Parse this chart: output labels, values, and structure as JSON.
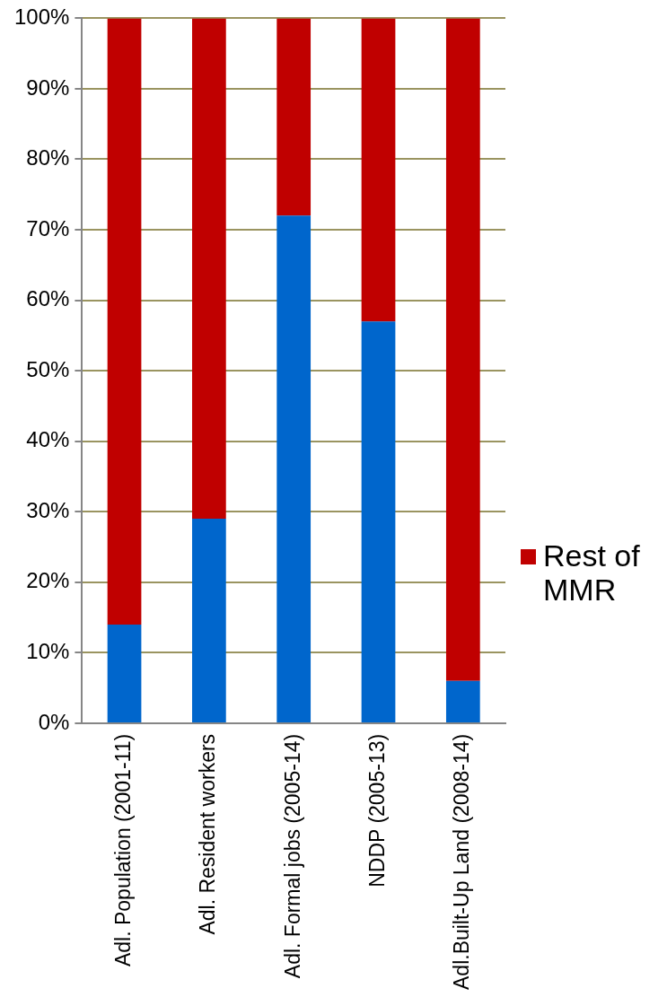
{
  "chart_data": {
    "type": "bar",
    "stacked": true,
    "categories": [
      "Adl. Population (2001-11)",
      "Adl. Resident workers",
      "Adl. Formal jobs (2005-14)",
      "NDDP (2005-13)",
      "Adl.Built-Up Land (2008-14)"
    ],
    "series": [
      {
        "color": "#0066cc",
        "values": [
          14,
          29,
          72,
          57,
          6
        ]
      },
      {
        "name": "Rest of MMR",
        "color": "#c00000",
        "values": [
          86,
          71,
          28,
          43,
          94
        ]
      }
    ],
    "ylim": [
      0,
      100
    ],
    "yticks": [
      {
        "value": 0,
        "label": "0%"
      },
      {
        "value": 10,
        "label": "10%"
      },
      {
        "value": 20,
        "label": "20%"
      },
      {
        "value": 30,
        "label": "30%"
      },
      {
        "value": 40,
        "label": "40%"
      },
      {
        "value": 50,
        "label": "50%"
      },
      {
        "value": 60,
        "label": "60%"
      },
      {
        "value": 70,
        "label": "70%"
      },
      {
        "value": 80,
        "label": "80%"
      },
      {
        "value": 90,
        "label": "90%"
      },
      {
        "value": 100,
        "label": "100%"
      }
    ],
    "grid": "y",
    "legend": "right"
  }
}
